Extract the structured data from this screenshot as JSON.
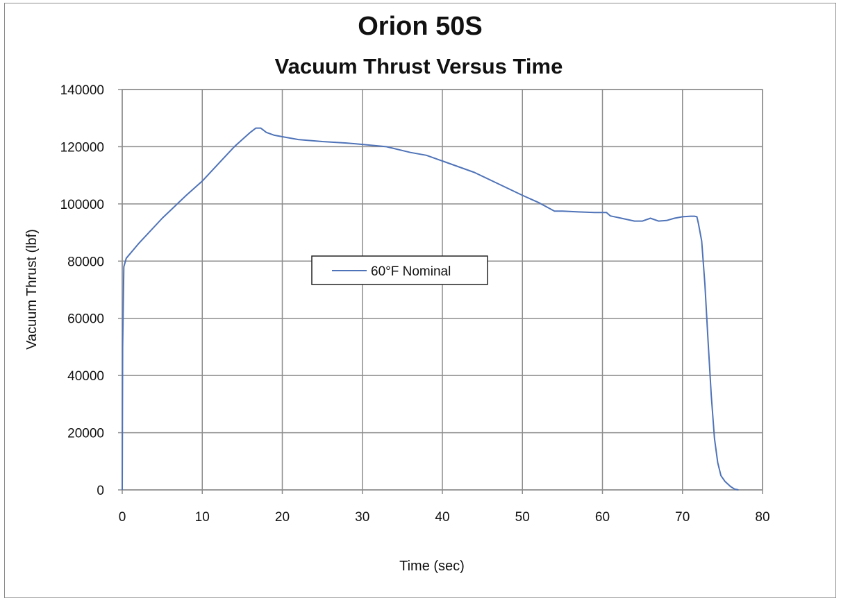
{
  "chart_data": {
    "type": "line",
    "title": "Orion 50S",
    "subtitle": "Vacuum Thrust Versus Time",
    "xlabel": "Time (sec)",
    "ylabel": "Vacuum Thrust (lbf)",
    "xlim": [
      0,
      80
    ],
    "ylim": [
      0,
      140000
    ],
    "x_ticks": [
      "0",
      "10",
      "20",
      "30",
      "40",
      "50",
      "60",
      "70",
      "80"
    ],
    "y_ticks": [
      "0",
      "20000",
      "40000",
      "60000",
      "80000",
      "100000",
      "120000",
      "140000"
    ],
    "grid": true,
    "legend_position": "center-left",
    "series": [
      {
        "name": "60°F Nominal",
        "color": "#4f73b8",
        "x": [
          0,
          0.05,
          0.2,
          0.5,
          2,
          5,
          8,
          10,
          12,
          14,
          16,
          16.7,
          17.3,
          18,
          19,
          20,
          22,
          25,
          28,
          30,
          33,
          36,
          38,
          40,
          44,
          47,
          50,
          52,
          53,
          54,
          55,
          57,
          59,
          60,
          60.5,
          61,
          62,
          63,
          64,
          65,
          66,
          67,
          68,
          69,
          70,
          71,
          71.5,
          71.8,
          72,
          72.4,
          72.8,
          73.2,
          73.6,
          74,
          74.4,
          74.8,
          75.3,
          76,
          76.5,
          77
        ],
        "y": [
          0,
          50000,
          78000,
          81000,
          86000,
          95000,
          103000,
          108000,
          114000,
          120000,
          125000,
          126500,
          126500,
          125000,
          124000,
          123500,
          122500,
          121800,
          121300,
          120800,
          120000,
          118000,
          117000,
          115000,
          111000,
          107000,
          103000,
          100500,
          99000,
          97500,
          97500,
          97200,
          97000,
          97000,
          97000,
          95800,
          95200,
          94600,
          94000,
          94000,
          95000,
          94000,
          94200,
          95000,
          95500,
          95700,
          95700,
          95500,
          93000,
          87000,
          72000,
          52000,
          33000,
          18000,
          9500,
          5000,
          3000,
          1200,
          300,
          0
        ]
      }
    ]
  }
}
